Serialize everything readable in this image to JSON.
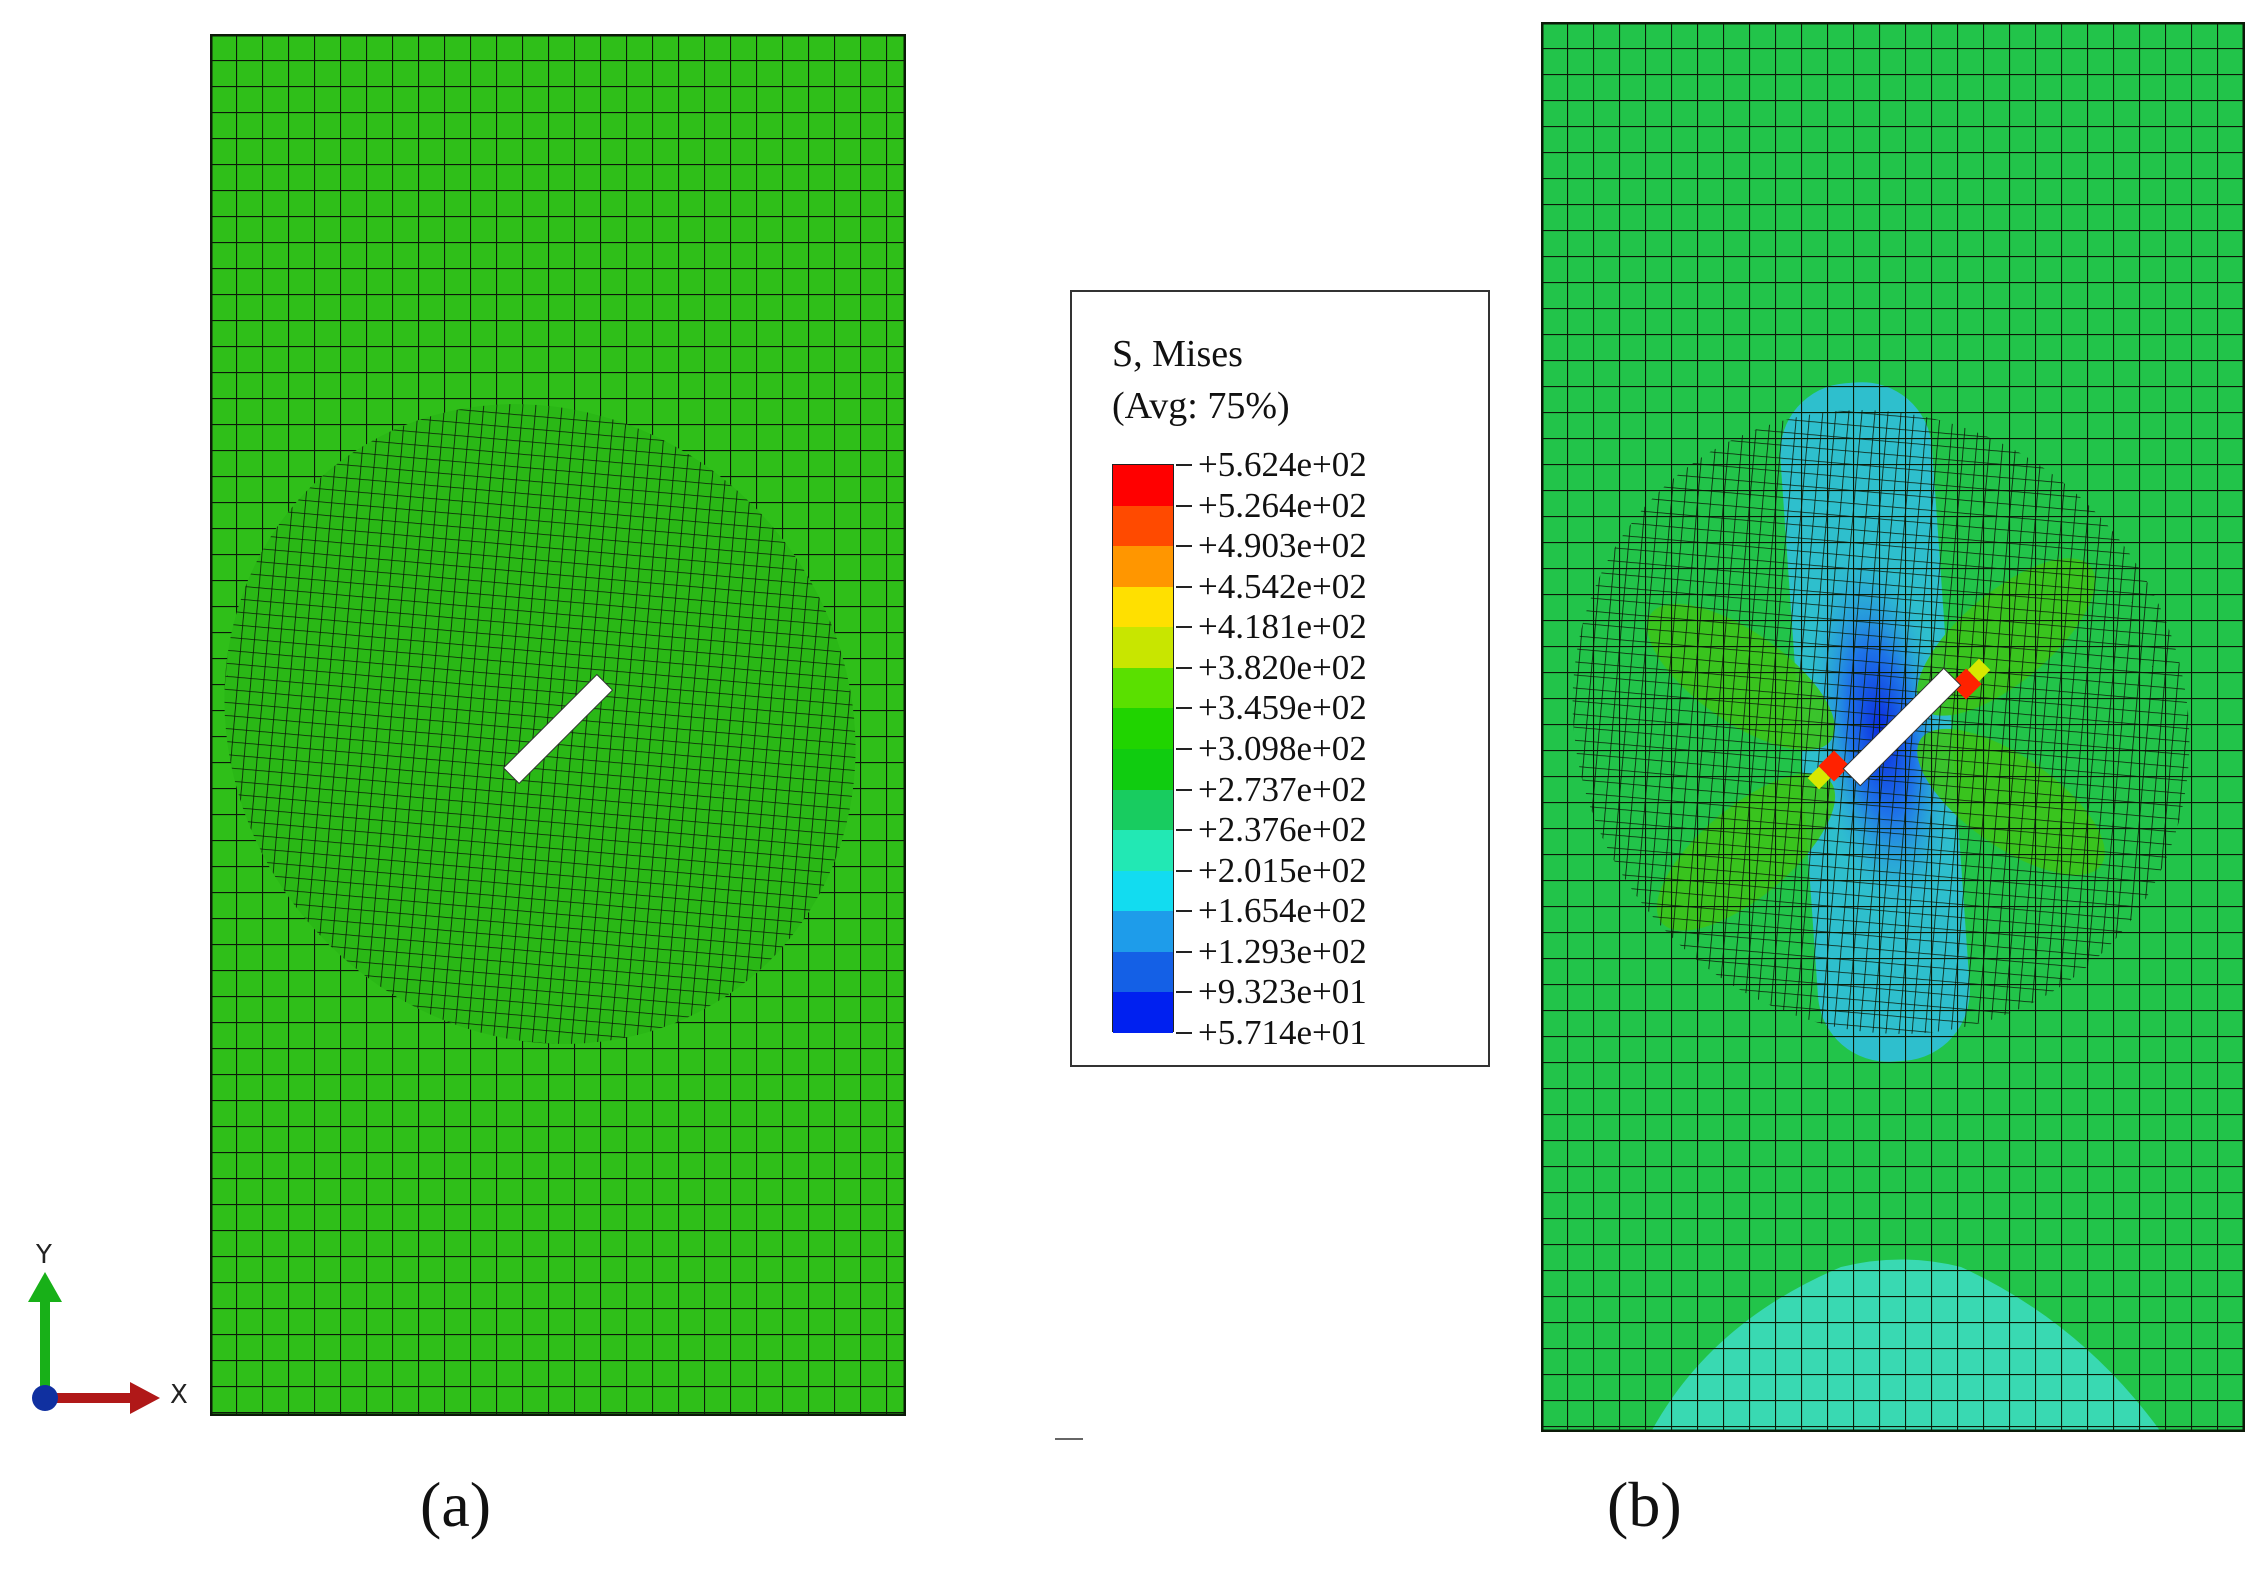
{
  "legend": {
    "title_line1": "S, Mises",
    "title_line2": "(Avg: 75%)",
    "levels": [
      "+5.624e+02",
      "+5.264e+02",
      "+4.903e+02",
      "+4.542e+02",
      "+4.181e+02",
      "+3.820e+02",
      "+3.459e+02",
      "+3.098e+02",
      "+2.737e+02",
      "+2.376e+02",
      "+2.015e+02",
      "+1.654e+02",
      "+1.293e+02",
      "+9.323e+01",
      "+5.714e+01"
    ],
    "colors": [
      "#ff0000",
      "#ff4a00",
      "#ff9600",
      "#ffe000",
      "#c8e600",
      "#5ae000",
      "#20d400",
      "#10cc10",
      "#18cc60",
      "#22e8b4",
      "#12dcf0",
      "#1e9cea",
      "#1460e6",
      "#0020f0"
    ]
  },
  "panels": {
    "a_label": "(a)",
    "b_label": "(b)"
  },
  "axes": {
    "x_label": "X",
    "y_label": "Y"
  },
  "colors": {
    "mesh_green": "#2fbf19",
    "mesh_green_b": "#22c44a",
    "mesh_lines": "#0b1a08",
    "low_stress_cyan": "#39d9b2",
    "low_stress_blue": "#1e74e8",
    "peak_red": "#ff2200",
    "axis_green": "#18b018",
    "axis_red": "#b01818",
    "axis_blue": "#1030a0"
  }
}
